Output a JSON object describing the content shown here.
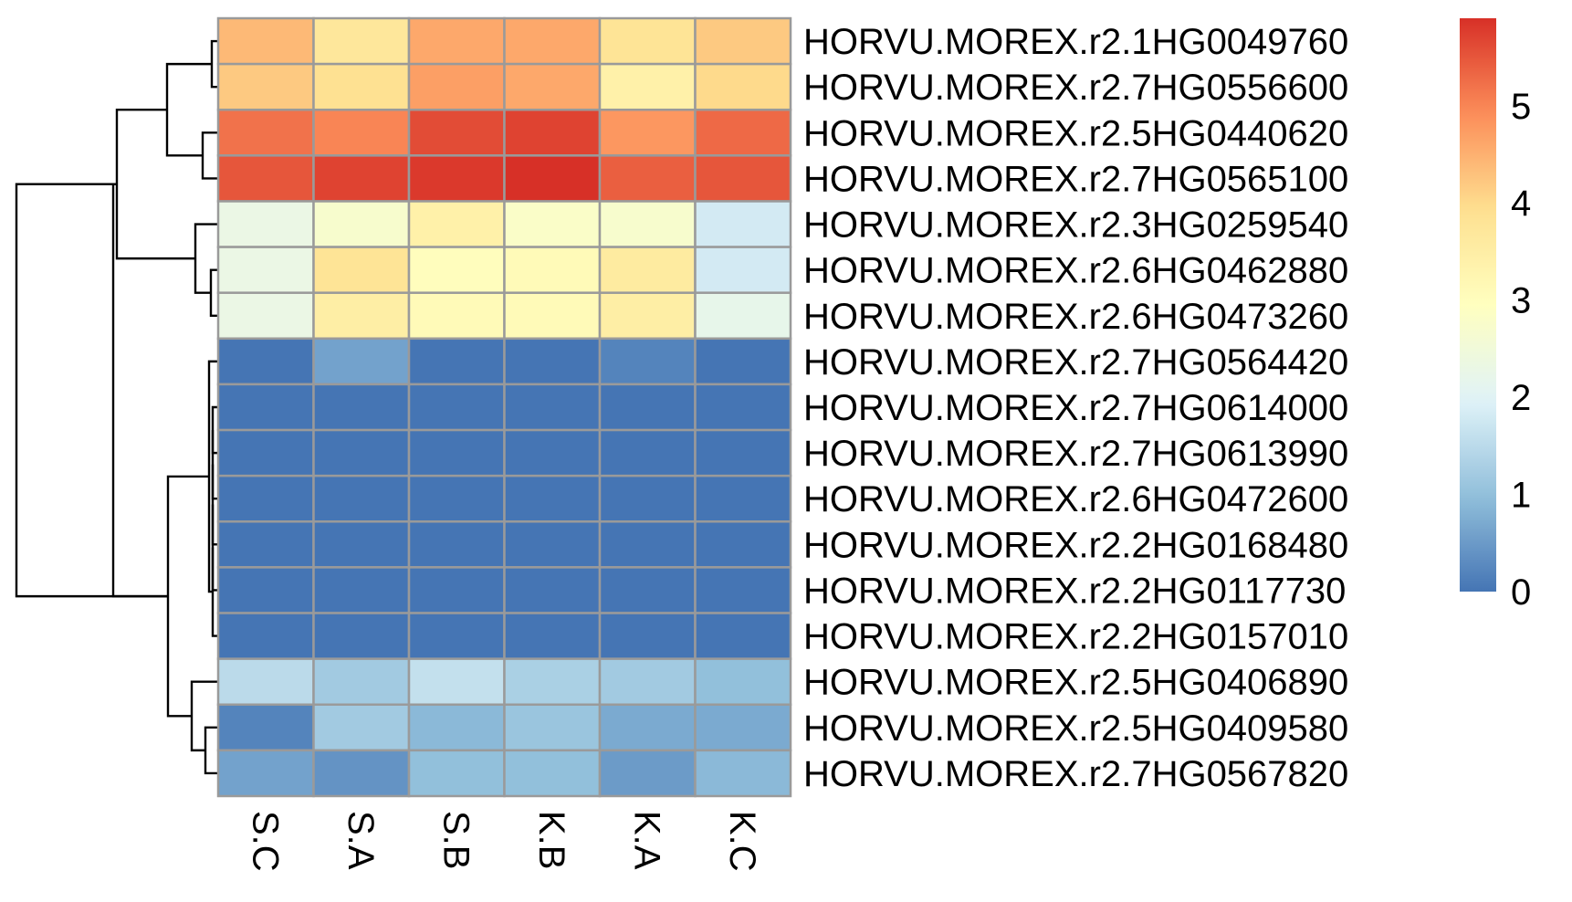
{
  "chart_data": {
    "type": "heatmap",
    "title": "",
    "columns": [
      "S.C",
      "S.A",
      "S.B",
      "K.B",
      "K.A",
      "K.C"
    ],
    "rows": [
      "HORVU.MOREX.r2.1HG0049760",
      "HORVU.MOREX.r2.7HG0556600",
      "HORVU.MOREX.r2.5HG0440620",
      "HORVU.MOREX.r2.7HG0565100",
      "HORVU.MOREX.r2.3HG0259540",
      "HORVU.MOREX.r2.6HG0462880",
      "HORVU.MOREX.r2.6HG0473260",
      "HORVU.MOREX.r2.7HG0564420",
      "HORVU.MOREX.r2.7HG0614000",
      "HORVU.MOREX.r2.7HG0613990",
      "HORVU.MOREX.r2.6HG0472600",
      "HORVU.MOREX.r2.2HG0168480",
      "HORVU.MOREX.r2.2HG0117730",
      "HORVU.MOREX.r2.2HG0157010",
      "HORVU.MOREX.r2.5HG0406890",
      "HORVU.MOREX.r2.5HG0409580",
      "HORVU.MOREX.r2.7HG0567820"
    ],
    "values": [
      [
        4.4,
        3.7,
        4.6,
        4.6,
        3.8,
        4.2
      ],
      [
        4.2,
        3.9,
        4.7,
        4.6,
        3.4,
        4.0
      ],
      [
        5.2,
        5.0,
        5.6,
        5.7,
        4.8,
        5.3
      ],
      [
        5.5,
        5.7,
        5.8,
        5.9,
        5.4,
        5.5
      ],
      [
        2.3,
        2.7,
        3.4,
        2.8,
        2.7,
        1.8
      ],
      [
        2.3,
        3.8,
        3.0,
        3.1,
        3.6,
        1.8
      ],
      [
        2.3,
        3.5,
        3.1,
        3.1,
        3.5,
        2.2
      ],
      [
        0.0,
        0.6,
        0.0,
        0.0,
        0.2,
        0.0
      ],
      [
        0.0,
        0.0,
        0.0,
        0.0,
        0.0,
        0.0
      ],
      [
        0.0,
        0.0,
        0.0,
        0.0,
        0.0,
        0.0
      ],
      [
        0.0,
        0.0,
        0.0,
        0.0,
        0.0,
        0.0
      ],
      [
        0.0,
        0.0,
        0.0,
        0.0,
        0.0,
        0.0
      ],
      [
        0.0,
        0.0,
        0.0,
        0.0,
        0.0,
        0.0
      ],
      [
        0.0,
        0.0,
        0.0,
        0.0,
        0.0,
        0.0
      ],
      [
        1.5,
        1.2,
        1.6,
        1.3,
        1.2,
        1.0
      ],
      [
        0.2,
        1.2,
        0.9,
        1.1,
        0.7,
        0.7
      ],
      [
        0.6,
        0.4,
        1.0,
        1.0,
        0.5,
        0.9
      ]
    ],
    "color_scale": {
      "min": 0,
      "max": 5.9,
      "ticks": [
        0,
        1,
        2,
        3,
        4,
        5
      ],
      "palette": [
        "#4575B4",
        "#91BFDB",
        "#E0F3F8",
        "#FFFFBF",
        "#FEE090",
        "#FC8D59",
        "#D73027"
      ],
      "legend_position": "right"
    },
    "border_color": "#9a9a9a",
    "dendrogram": "rows"
  }
}
